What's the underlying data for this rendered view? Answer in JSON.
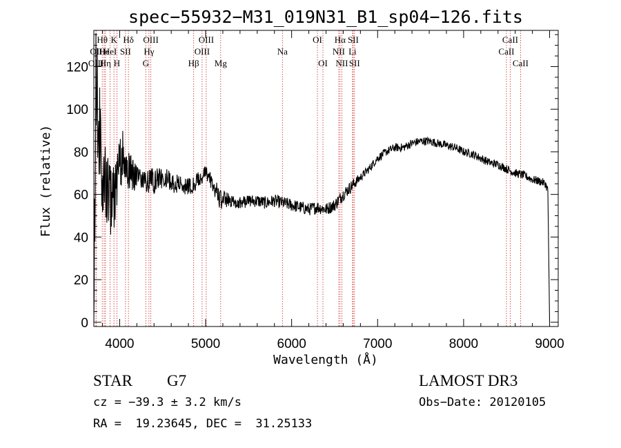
{
  "chart_data": {
    "type": "line",
    "title": "spec−55932−M31_019N31_B1_sp04−126.fits",
    "xlabel": "Wavelength (Å)",
    "ylabel": "Flux (relative)",
    "xlim": [
      3700,
      9100
    ],
    "ylim": [
      -2,
      137
    ],
    "x_ticks": [
      4000,
      5000,
      6000,
      7000,
      8000,
      9000
    ],
    "x_tick_labels": [
      "4000",
      "5000",
      "6000",
      "7000",
      "8000",
      "9000"
    ],
    "y_ticks": [
      0,
      20,
      40,
      60,
      80,
      100,
      120
    ],
    "y_tick_labels": [
      "0",
      "20",
      "40",
      "60",
      "80",
      "100",
      "120"
    ],
    "grid": false,
    "legend": "none",
    "spectrum_anchors": {
      "x": [
        3700,
        3710,
        3725,
        3750,
        3775,
        3800,
        3850,
        3900,
        3950,
        4000,
        4050,
        4100,
        4150,
        4200,
        4250,
        4300,
        4350,
        4400,
        4500,
        4600,
        4700,
        4800,
        4850,
        4900,
        5000,
        5050,
        5100,
        5150,
        5180,
        5200,
        5300,
        5400,
        5500,
        5600,
        5700,
        5800,
        5900,
        6000,
        6100,
        6200,
        6300,
        6400,
        6500,
        6560,
        6600,
        6700,
        6800,
        6900,
        7000,
        7100,
        7200,
        7300,
        7400,
        7500,
        7600,
        7700,
        7800,
        7900,
        8000,
        8100,
        8200,
        8300,
        8400,
        8500,
        8600,
        8700,
        8800,
        8900,
        8950,
        8980,
        9000
      ],
      "y": [
        0,
        60,
        120,
        95,
        85,
        70,
        60,
        55,
        58,
        75,
        80,
        72,
        70,
        68,
        68,
        66,
        67,
        66,
        68,
        66,
        65,
        64,
        64,
        66,
        70,
        67,
        63,
        60,
        56,
        58,
        57,
        56,
        57,
        57,
        56,
        57,
        56,
        55,
        54,
        53,
        54,
        53,
        55,
        58,
        60,
        64,
        68,
        72,
        77,
        80,
        82,
        82,
        84,
        85,
        85,
        84,
        83,
        82,
        80,
        79,
        77,
        75,
        74,
        72,
        70,
        69,
        67,
        66,
        65,
        62,
        0
      ],
      "noise_amplitude": [
        0,
        35,
        35,
        30,
        25,
        22,
        20,
        18,
        16,
        14,
        12,
        10,
        8,
        7,
        7,
        6,
        6,
        6,
        5,
        5,
        5,
        4,
        4,
        4,
        4,
        4,
        4,
        5,
        5,
        4,
        3,
        3,
        3,
        3,
        3,
        3,
        3,
        3,
        3,
        3,
        3,
        3,
        3,
        3,
        3,
        3,
        2,
        2,
        2,
        2,
        2,
        2,
        2,
        2,
        2,
        2,
        2,
        2,
        2,
        2,
        2,
        2,
        2,
        2,
        2,
        2,
        2,
        2,
        2,
        2,
        0
      ]
    },
    "spectral_lines": [
      {
        "label": "Hθ",
        "wavelength": 3798,
        "row": 1
      },
      {
        "label": "OII",
        "wavelength": 3727,
        "row": 2
      },
      {
        "label": "OIII",
        "wavelength": 3725,
        "row": 3
      },
      {
        "label": "He",
        "wavelength": 3820,
        "row": 2
      },
      {
        "label": "Hη",
        "wavelength": 3835,
        "row": 3
      },
      {
        "label": "K",
        "wavelength": 3934,
        "row": 1
      },
      {
        "label": "HeI",
        "wavelength": 3889,
        "row": 2
      },
      {
        "label": "SII",
        "wavelength": 4068,
        "row": 2
      },
      {
        "label": "H",
        "wavelength": 3968,
        "row": 3
      },
      {
        "label": "Hδ",
        "wavelength": 4102,
        "row": 1
      },
      {
        "label": "OIII",
        "wavelength": 4363,
        "row": 1
      },
      {
        "label": "Hγ",
        "wavelength": 4341,
        "row": 2
      },
      {
        "label": "G",
        "wavelength": 4304,
        "row": 3
      },
      {
        "label": "Hβ",
        "wavelength": 4861,
        "row": 3
      },
      {
        "label": "OIII",
        "wavelength": 5007,
        "row": 1
      },
      {
        "label": "OIII",
        "wavelength": 4959,
        "row": 2
      },
      {
        "label": "Mg",
        "wavelength": 5175,
        "row": 3
      },
      {
        "label": "Na",
        "wavelength": 5893,
        "row": 2
      },
      {
        "label": "OI",
        "wavelength": 6300,
        "row": 1
      },
      {
        "label": "OI",
        "wavelength": 6364,
        "row": 3
      },
      {
        "label": "Hα",
        "wavelength": 6563,
        "row": 1
      },
      {
        "label": "SII",
        "wavelength": 6716,
        "row": 1
      },
      {
        "label": "NII",
        "wavelength": 6548,
        "row": 2
      },
      {
        "label": "Li",
        "wavelength": 6708,
        "row": 2
      },
      {
        "label": "NII",
        "wavelength": 6584,
        "row": 3
      },
      {
        "label": "SII",
        "wavelength": 6731,
        "row": 3
      },
      {
        "label": "CaII",
        "wavelength": 8542,
        "row": 1
      },
      {
        "label": "CaII",
        "wavelength": 8498,
        "row": 2
      },
      {
        "label": "CaII",
        "wavelength": 8662,
        "row": 3
      }
    ]
  },
  "info": {
    "class": "STAR",
    "subclass": "G7",
    "survey": "LAMOST DR3",
    "cz": "cz = −39.3 ± 3.2 km/s",
    "obs_date": "Obs−Date: 20120105",
    "coords": "RA =  19.23645, DEC =  31.25133"
  }
}
